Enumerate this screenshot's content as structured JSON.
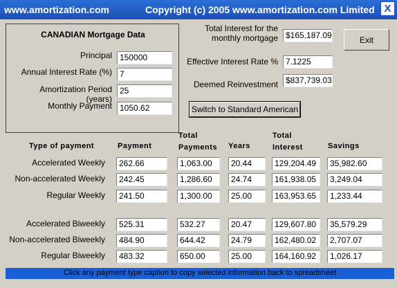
{
  "window": {
    "title_left": "www.amortization.com",
    "title_right": "Copyright (c) 2005 www.amortization.com Limited",
    "close_glyph": "X"
  },
  "mortgage": {
    "panel_title": "CANADIAN Mortgage Data",
    "principal_label": "Principal",
    "principal_value": "150000",
    "rate_label": "Annual Interest Rate (%)",
    "rate_value": "7",
    "period_label": "Amortization Period (years)",
    "period_value": "25",
    "payment_label": "Monthly Payment",
    "payment_value": "1050.62"
  },
  "summary": {
    "total_interest_label_line1": "Total Interest for the",
    "total_interest_label_line2": "monthly mortgage",
    "total_interest_value": "$165,187.09",
    "effective_rate_label": "Effective Interest Rate %",
    "effective_rate_value": "7.1225",
    "deemed_label": "Deemed Reinvestment",
    "deemed_value": "$837,739.03"
  },
  "buttons": {
    "exit": "Exit",
    "switch": "Switch to Standard American"
  },
  "columns": {
    "type": "Type of payment",
    "payment": "Payment",
    "total_payments_l1": "Total",
    "total_payments_l2": "Payments",
    "years": "Years",
    "total_interest_l1": "Total",
    "total_interest_l2": "Interest",
    "savings": "Savings"
  },
  "rows": [
    {
      "label": "Accelerated Weekly",
      "payment": "262.66",
      "total_payments": "1,063.00",
      "years": "20.44",
      "total_interest": "129,204.49",
      "savings": "35,982.60"
    },
    {
      "label": "Non-accelerated Weekly",
      "payment": "242.45",
      "total_payments": "1,286.60",
      "years": "24.74",
      "total_interest": "161,938.05",
      "savings": "3,249.04"
    },
    {
      "label": "Regular Weekly",
      "payment": "241.50",
      "total_payments": "1,300.00",
      "years": "25.00",
      "total_interest": "163,953.65",
      "savings": "1,233.44"
    },
    {
      "label": "Accelerated Biweekly",
      "payment": "525.31",
      "total_payments": "532.27",
      "years": "20.47",
      "total_interest": "129,607.80",
      "savings": "35,579.29"
    },
    {
      "label": "Non-accelerated Biweekly",
      "payment": "484.90",
      "total_payments": "644.42",
      "years": "24.79",
      "total_interest": "162,480.02",
      "savings": "2,707.07"
    },
    {
      "label": "Regular Biweekly",
      "payment": "483.32",
      "total_payments": "650.00",
      "years": "25.00",
      "total_interest": "164,160.92",
      "savings": "1,026.17"
    }
  ],
  "status": {
    "text": "Click any payment type caption to copy selected information back to spreadsheet"
  }
}
